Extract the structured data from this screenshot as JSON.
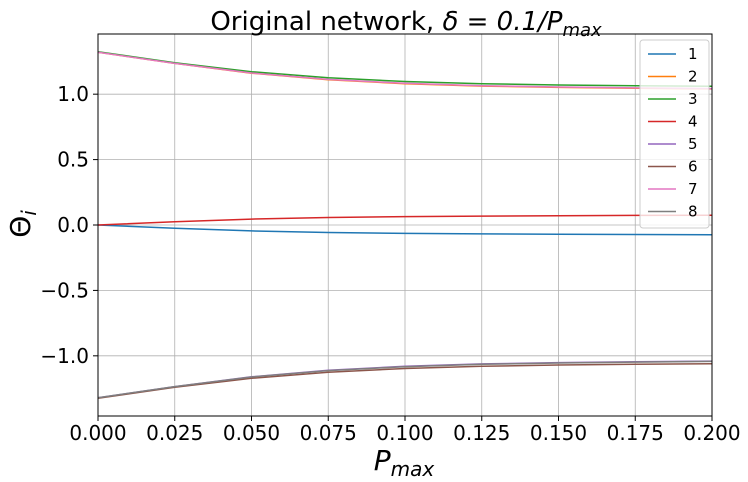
{
  "chart_data": {
    "type": "line",
    "title_text": "Original network, ",
    "title_math": "δ = 0.1/P",
    "title_math_sub": "max",
    "xlabel": "P",
    "xlabel_sub": "max",
    "ylabel": "Θ",
    "ylabel_sub": "i",
    "xlim": [
      0.0,
      0.2
    ],
    "ylim": [
      -1.46,
      1.46
    ],
    "xticks": [
      0.0,
      0.025,
      0.05,
      0.075,
      0.1,
      0.125,
      0.15,
      0.175,
      0.2
    ],
    "xtick_labels": [
      "0.000",
      "0.025",
      "0.050",
      "0.075",
      "0.100",
      "0.125",
      "0.150",
      "0.175",
      "0.200"
    ],
    "yticks": [
      -1.0,
      -0.5,
      0.0,
      0.5,
      1.0
    ],
    "ytick_labels": [
      "−1.0",
      "−0.5",
      "0.0",
      "0.5",
      "1.0"
    ],
    "grid": true,
    "legend_position": "top-right",
    "x": [
      0.0,
      0.025,
      0.05,
      0.075,
      0.1,
      0.125,
      0.15,
      0.175,
      0.2
    ],
    "series": [
      {
        "name": "1",
        "color": "#1f77b4",
        "values": [
          0.0,
          -0.025,
          -0.045,
          -0.057,
          -0.064,
          -0.068,
          -0.071,
          -0.073,
          -0.075
        ]
      },
      {
        "name": "2",
        "color": "#ff7f0e",
        "values": [
          1.32,
          1.235,
          1.16,
          1.11,
          1.08,
          1.062,
          1.052,
          1.045,
          1.04
        ]
      },
      {
        "name": "3",
        "color": "#2ca02c",
        "values": [
          1.325,
          1.24,
          1.172,
          1.125,
          1.097,
          1.08,
          1.07,
          1.064,
          1.06
        ]
      },
      {
        "name": "4",
        "color": "#d62728",
        "values": [
          0.0,
          0.025,
          0.045,
          0.057,
          0.064,
          0.068,
          0.071,
          0.073,
          0.075
        ]
      },
      {
        "name": "5",
        "color": "#9467bd",
        "values": [
          -1.32,
          -1.235,
          -1.16,
          -1.11,
          -1.08,
          -1.062,
          -1.052,
          -1.045,
          -1.04
        ]
      },
      {
        "name": "6",
        "color": "#8c564b",
        "values": [
          -1.325,
          -1.24,
          -1.172,
          -1.125,
          -1.097,
          -1.08,
          -1.07,
          -1.064,
          -1.06
        ]
      },
      {
        "name": "7",
        "color": "#e377c2",
        "values": [
          1.32,
          1.235,
          1.162,
          1.113,
          1.083,
          1.065,
          1.055,
          1.048,
          1.043
        ]
      },
      {
        "name": "8",
        "color": "#7f7f7f",
        "values": [
          -1.32,
          -1.235,
          -1.162,
          -1.113,
          -1.083,
          -1.065,
          -1.055,
          -1.048,
          -1.043
        ]
      }
    ]
  }
}
